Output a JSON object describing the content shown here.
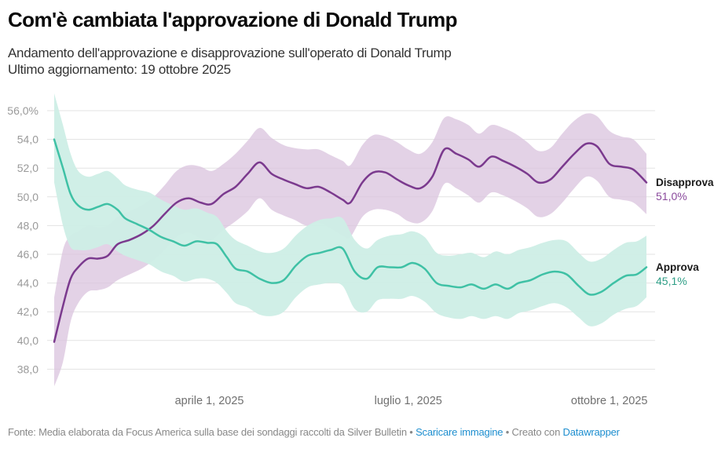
{
  "header": {
    "title": "Com'è cambiata l'approvazione di Donald Trump",
    "subtitle_line1": "Andamento dell'approvazione e disapprovazione sull'operato di Donald Trump",
    "subtitle_line2": "Ultimo aggiornamento: 19 ottobre 2025"
  },
  "footer": {
    "source": "Fonte: Media elaborata da Focus America sulla base dei sondaggi raccolti da Silver Bulletin",
    "separator": " • ",
    "download_label": "Scaricare immagine",
    "created_with": "Creato con ",
    "datawrapper_label": "Datawrapper"
  },
  "colors": {
    "approve": "#3fc1a5",
    "approve_band": "#cdeee6",
    "disapprove": "#7b3a8e",
    "disapprove_band": "#d9c3dd",
    "approve_value_text": "#2e9e86",
    "disapprove_value_text": "#8a4a9c",
    "grid": "#e3e3e3"
  },
  "chart_data": {
    "type": "area",
    "title": "Com'è cambiata l'approvazione di Donald Trump",
    "xlabel": "",
    "ylabel": "",
    "ylim": [
      36.8,
      57.2
    ],
    "y_ticks": [
      56,
      54,
      52,
      50,
      48,
      46,
      44,
      42,
      40,
      38
    ],
    "y_tick_labels": [
      "56,0%",
      "54,0",
      "52,0",
      "50,0",
      "48,0",
      "46,0",
      "44,0",
      "42,0",
      "40,0",
      "38,0"
    ],
    "x_range_days": [
      0,
      271
    ],
    "x_ticks": [
      {
        "day": 71,
        "label": "aprile 1, 2025"
      },
      {
        "day": 162,
        "label": "luglio 1, 2025"
      },
      {
        "day": 254,
        "label": "ottobre 1, 2025"
      }
    ],
    "x_note": "days since 20 gennaio 2025",
    "grid": true,
    "legend": "inline-right",
    "series": [
      {
        "name": "Disapprova",
        "end_label": "51,0%",
        "x": [
          0,
          4,
          7.5,
          11,
          15.5,
          20,
          24.5,
          29,
          34.5,
          40,
          45.5,
          50.5,
          56,
          61.5,
          67,
          72,
          77.5,
          83,
          88.5,
          94,
          99.5,
          105,
          110,
          115.5,
          121,
          126.5,
          132,
          135.5,
          141,
          146,
          151.5,
          157,
          162,
          167.5,
          173,
          178.5,
          184,
          189.5,
          194.5,
          200,
          205.5,
          211,
          216.5,
          221.5,
          227,
          232.5,
          238,
          243.5,
          248.5,
          254,
          259.5,
          265,
          271
        ],
        "values": [
          39.9,
          42.4,
          44.3,
          45.1,
          45.7,
          45.7,
          45.9,
          46.7,
          47.0,
          47.4,
          48.0,
          48.8,
          49.6,
          49.9,
          49.6,
          49.5,
          50.2,
          50.7,
          51.6,
          52.4,
          51.6,
          51.2,
          50.9,
          50.6,
          50.7,
          50.3,
          49.8,
          49.6,
          51.0,
          51.7,
          51.7,
          51.2,
          50.8,
          50.6,
          51.4,
          53.3,
          53.0,
          52.6,
          52.1,
          52.8,
          52.5,
          52.1,
          51.6,
          51.0,
          51.2,
          52.1,
          53.0,
          53.7,
          53.5,
          52.3,
          52.1,
          51.9,
          51.0
        ],
        "upper": [
          43.0,
          46.3,
          47.3,
          47.6,
          48.0,
          47.9,
          48.0,
          48.6,
          49.0,
          49.4,
          50.0,
          50.8,
          51.8,
          52.2,
          52.1,
          51.8,
          52.3,
          53.0,
          53.9,
          54.8,
          54.1,
          53.6,
          53.4,
          53.3,
          53.3,
          52.9,
          52.5,
          52.2,
          53.6,
          54.3,
          54.2,
          53.8,
          53.3,
          53.0,
          53.8,
          55.5,
          55.4,
          55.0,
          54.4,
          55.0,
          54.8,
          54.4,
          53.8,
          53.2,
          53.4,
          54.4,
          55.3,
          55.8,
          55.6,
          54.6,
          54.2,
          54.0,
          53.0
        ],
        "lower": [
          36.8,
          38.5,
          41.3,
          42.6,
          43.4,
          43.5,
          43.7,
          44.2,
          44.6,
          45.0,
          45.6,
          46.3,
          47.2,
          47.5,
          47.1,
          47.0,
          47.7,
          48.3,
          49.0,
          49.9,
          49.1,
          48.7,
          48.4,
          48.0,
          48.2,
          47.8,
          47.3,
          47.2,
          48.6,
          49.1,
          49.1,
          48.8,
          48.3,
          48.2,
          49.0,
          50.9,
          50.6,
          50.1,
          49.6,
          50.3,
          50.1,
          49.7,
          49.2,
          48.6,
          48.8,
          49.6,
          50.6,
          51.4,
          51.1,
          50.0,
          49.8,
          49.6,
          48.8
        ]
      },
      {
        "name": "Approva",
        "end_label": "45,1%",
        "x": [
          0,
          4,
          7.5,
          11,
          15.5,
          20,
          24.5,
          29,
          32.5,
          38,
          43.5,
          49,
          54.5,
          59.5,
          65,
          70,
          74.5,
          79,
          83,
          88.5,
          94,
          99.5,
          105,
          110.5,
          116,
          121.5,
          126.5,
          132,
          137.5,
          143,
          148,
          153.5,
          159,
          164,
          169.5,
          175,
          180.5,
          186,
          191,
          196.5,
          202,
          207.5,
          212.5,
          218,
          223.5,
          229,
          234.5,
          240,
          245,
          250.5,
          256,
          261.5,
          266.5,
          271
        ],
        "values": [
          54.0,
          52.0,
          50.2,
          49.4,
          49.1,
          49.3,
          49.5,
          49.1,
          48.5,
          48.1,
          47.7,
          47.2,
          46.9,
          46.6,
          46.9,
          46.8,
          46.7,
          45.8,
          45.0,
          44.8,
          44.3,
          44.0,
          44.2,
          45.2,
          45.9,
          46.1,
          46.3,
          46.4,
          44.8,
          44.3,
          45.1,
          45.1,
          45.1,
          45.4,
          45.0,
          44.0,
          43.8,
          43.7,
          43.9,
          43.6,
          43.9,
          43.6,
          44.0,
          44.2,
          44.6,
          44.8,
          44.6,
          43.8,
          43.2,
          43.4,
          44.0,
          44.5,
          44.6,
          45.1
        ],
        "upper": [
          57.2,
          55.0,
          53.0,
          51.8,
          51.4,
          51.6,
          51.8,
          51.3,
          50.8,
          50.5,
          50.3,
          49.8,
          49.4,
          49.1,
          49.2,
          48.9,
          48.6,
          47.6,
          47.0,
          46.6,
          46.2,
          46.1,
          46.4,
          47.3,
          48.0,
          48.4,
          48.5,
          48.5,
          47.0,
          46.4,
          47.0,
          47.3,
          47.4,
          47.6,
          47.2,
          46.1,
          45.9,
          46.0,
          46.1,
          45.8,
          46.2,
          46.0,
          46.3,
          46.5,
          46.8,
          47.0,
          46.9,
          46.1,
          45.5,
          45.7,
          46.3,
          46.8,
          46.9,
          47.3
        ],
        "lower": [
          51.0,
          48.0,
          46.5,
          46.3,
          46.3,
          46.5,
          46.7,
          46.2,
          45.9,
          45.6,
          45.3,
          44.8,
          44.5,
          44.1,
          44.3,
          44.3,
          44.0,
          43.3,
          42.6,
          42.3,
          41.8,
          41.7,
          42.0,
          43.0,
          43.7,
          43.9,
          44.0,
          43.8,
          42.2,
          42.0,
          42.8,
          42.9,
          42.9,
          43.1,
          42.7,
          41.9,
          41.6,
          41.5,
          41.7,
          41.5,
          41.7,
          41.5,
          41.9,
          42.1,
          42.4,
          42.6,
          42.3,
          41.6,
          41.0,
          41.2,
          41.8,
          42.2,
          42.4,
          43.0
        ]
      }
    ]
  }
}
